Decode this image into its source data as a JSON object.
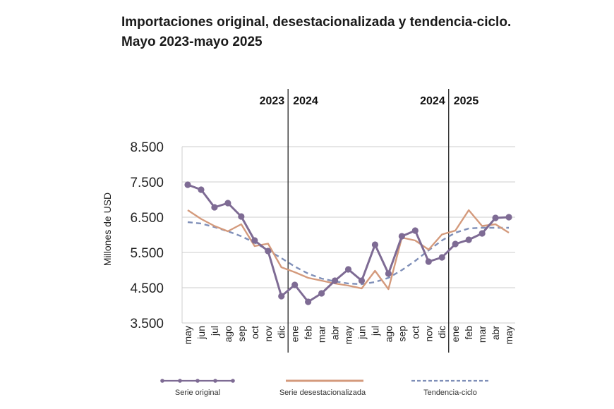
{
  "chart_data": {
    "type": "line",
    "title": "Importaciones original, desestacionalizada y tendencia-ciclo. Mayo 2023-mayo 2025",
    "ylabel": "Millones de USD",
    "xlabel": "",
    "ylim": [
      3500,
      8500
    ],
    "yticks": [
      8500,
      7500,
      6500,
      5500,
      4500,
      3500
    ],
    "ytick_labels": [
      "8.500",
      "7.500",
      "6.500",
      "5.500",
      "4.500",
      "3.500"
    ],
    "grid": true,
    "legend_position": "bottom",
    "categories": [
      "may",
      "jun",
      "jul",
      "ago",
      "sep",
      "oct",
      "nov",
      "dic",
      "ene",
      "feb",
      "mar",
      "abr",
      "may",
      "jun",
      "jul",
      "ago",
      "sep",
      "oct",
      "nov",
      "dic",
      "ene",
      "feb",
      "mar",
      "abr",
      "may"
    ],
    "year_dividers": [
      {
        "after_index": 7,
        "left_label": "2023",
        "right_label": "2024"
      },
      {
        "after_index": 19,
        "left_label": "2024",
        "right_label": "2025"
      }
    ],
    "series": [
      {
        "name": "Serie original",
        "color": "#7e6b94",
        "style": "solid-markers",
        "values": [
          7420,
          7280,
          6780,
          6900,
          6520,
          5840,
          5540,
          4260,
          4580,
          4100,
          4340,
          4700,
          5020,
          4700,
          5720,
          4900,
          5960,
          6120,
          5240,
          5360,
          5740,
          5860,
          6040,
          6480,
          6500
        ]
      },
      {
        "name": "Serie desestacionalizada",
        "color": "#d49a7c",
        "style": "solid",
        "values": [
          6700,
          6450,
          6250,
          6100,
          6300,
          5680,
          5750,
          5080,
          4940,
          4780,
          4700,
          4620,
          4560,
          4480,
          4980,
          4460,
          5920,
          5840,
          5580,
          6010,
          6120,
          6700,
          6250,
          6300,
          6060
        ]
      },
      {
        "name": "Tendencia-ciclo",
        "color": "#7f8fb8",
        "style": "dashed",
        "values": [
          6360,
          6320,
          6220,
          6100,
          5960,
          5780,
          5560,
          5340,
          5100,
          4900,
          4760,
          4680,
          4620,
          4600,
          4660,
          4780,
          5000,
          5260,
          5560,
          5840,
          6060,
          6180,
          6200,
          6200,
          6200
        ]
      }
    ]
  }
}
